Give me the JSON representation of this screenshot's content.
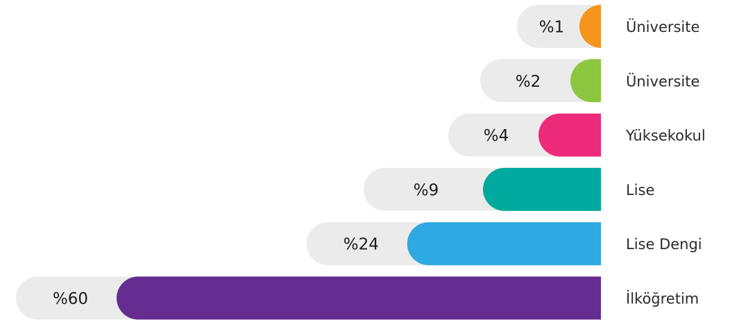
{
  "chart_data": {
    "type": "bar",
    "orientation": "horizontal",
    "categories": [
      "Üniversite",
      "Üniversite",
      "Yüksekokul",
      "Lise",
      "Lise Dengi",
      "İlköğretim"
    ],
    "values": [
      1,
      2,
      4,
      9,
      24,
      60
    ],
    "value_labels": [
      "%1",
      "%2",
      "%4",
      "%9",
      "%24",
      "%60"
    ],
    "colors": [
      "#F7941D",
      "#8DC63F",
      "#EE2A7B",
      "#00A99D",
      "#2EA9E1",
      "#662D91"
    ],
    "track_color": "#EBEBEB",
    "title": "",
    "xlabel": "",
    "ylabel": "",
    "legend": "none",
    "grid": false
  }
}
